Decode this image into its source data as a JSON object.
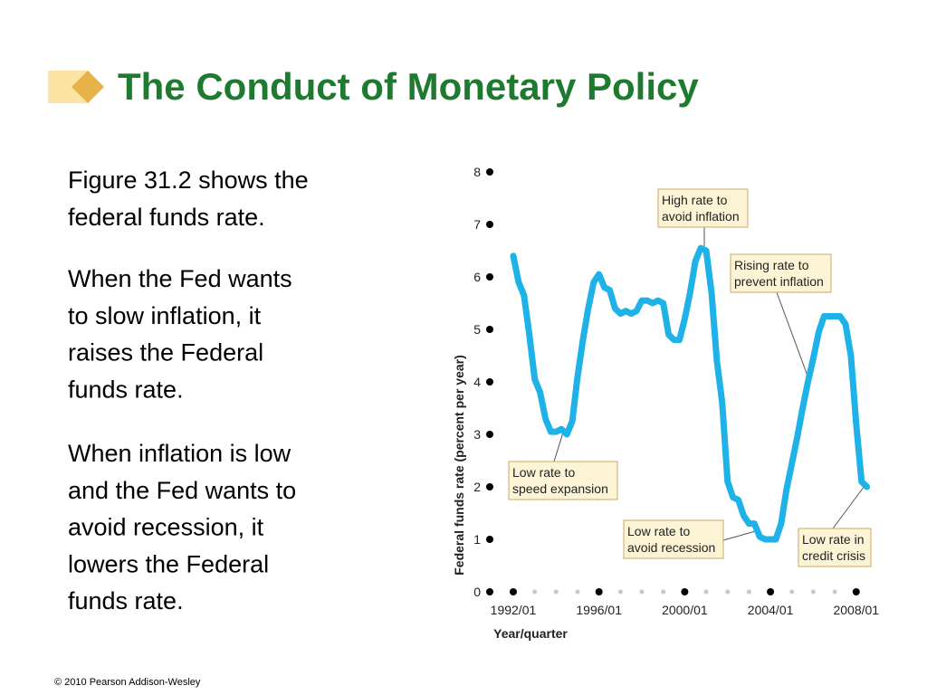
{
  "slide": {
    "title": "The Conduct of Monetary Policy",
    "paragraphs": [
      [
        "Figure 31.2 shows the",
        "federal funds rate."
      ],
      [
        "When the Fed wants",
        "to slow inflation, it",
        "raises the Federal",
        "funds rate."
      ],
      [
        "When inflation is low",
        "and the Fed wants to",
        "avoid recession, it",
        "lowers the Federal",
        "funds rate."
      ]
    ],
    "footer": "© 2010 Pearson Addison-Wesley"
  },
  "chart_data": {
    "type": "line",
    "ylabel": "Federal funds rate (percent per year)",
    "xlabel": "Year/quarter",
    "xlim": [
      1991,
      2008.6
    ],
    "ylim": [
      0,
      8
    ],
    "yticks": [
      0,
      1,
      2,
      3,
      4,
      5,
      6,
      7,
      8
    ],
    "xticks": [
      {
        "value": 1992,
        "label": "1992/01"
      },
      {
        "value": 1996,
        "label": "1996/01"
      },
      {
        "value": 2000,
        "label": "2000/01"
      },
      {
        "value": 2004,
        "label": "2004/01"
      },
      {
        "value": 2008,
        "label": "2008/01"
      }
    ],
    "xminorticks": [
      1993,
      1994,
      1995,
      1997,
      1998,
      1999,
      2001,
      2002,
      2003,
      2005,
      2006,
      2007
    ],
    "series": [
      {
        "color": "#1fb2e8",
        "x": [
          1992,
          1992.25,
          1992.5,
          1992.75,
          1993,
          1993.25,
          1993.5,
          1993.75,
          1994,
          1994.25,
          1994.5,
          1994.75,
          1995,
          1995.25,
          1995.5,
          1995.75,
          1996,
          1996.25,
          1996.5,
          1996.75,
          1997,
          1997.25,
          1997.5,
          1997.75,
          1998,
          1998.25,
          1998.5,
          1998.75,
          1999,
          1999.25,
          1999.5,
          1999.75,
          2000,
          2000.25,
          2000.5,
          2000.75,
          2001,
          2001.25,
          2001.5,
          2001.75,
          2002,
          2002.25,
          2002.5,
          2002.75,
          2003,
          2003.25,
          2003.5,
          2003.75,
          2004,
          2004.25,
          2004.5,
          2004.75,
          2005,
          2005.25,
          2005.5,
          2005.75,
          2006,
          2006.25,
          2006.5,
          2006.75,
          2007,
          2007.25,
          2007.5,
          2007.75,
          2008,
          2008.25,
          2008.5
        ],
        "values": [
          6.4,
          5.9,
          5.65,
          4.9,
          4.05,
          3.8,
          3.3,
          3.05,
          3.05,
          3.1,
          3.0,
          3.25,
          4.1,
          4.8,
          5.4,
          5.9,
          6.05,
          5.8,
          5.75,
          5.4,
          5.3,
          5.35,
          5.3,
          5.35,
          5.55,
          5.55,
          5.5,
          5.55,
          5.5,
          4.9,
          4.8,
          4.8,
          5.2,
          5.7,
          6.3,
          6.55,
          6.5,
          5.7,
          4.4,
          3.6,
          2.1,
          1.8,
          1.75,
          1.45,
          1.3,
          1.3,
          1.05,
          1.0,
          1.0,
          1.0,
          1.3,
          1.95,
          2.45,
          2.95,
          3.5,
          4.0,
          4.45,
          4.95,
          5.25,
          5.25,
          5.25,
          5.25,
          5.1,
          4.5,
          3.2,
          2.1,
          2.0
        ]
      }
    ],
    "annotations": [
      [
        "High rate to",
        "avoid inflation"
      ],
      [
        "Rising rate to",
        "prevent inflation"
      ],
      [
        "Low rate to",
        "speed expansion"
      ],
      [
        "Low rate to",
        "avoid recession"
      ],
      [
        "Low rate in",
        "credit crisis"
      ]
    ]
  }
}
